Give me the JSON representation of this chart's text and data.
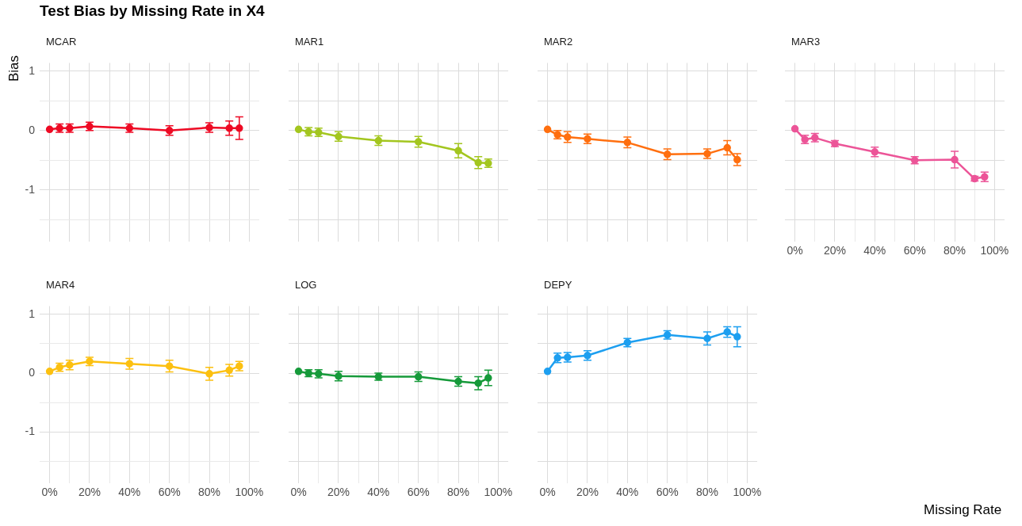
{
  "chart_data": [
    {
      "type": "line",
      "title": "Test Bias by Missing Rate in X4",
      "subtitle": "MCAR",
      "ylabel": "Bias",
      "x": [
        0,
        5,
        10,
        20,
        40,
        60,
        80,
        90,
        95
      ],
      "marker": "circle",
      "grid": true,
      "tick_labels": "y",
      "series": [
        {
          "color": "#ee0a24",
          "values": [
            0.02,
            0.04,
            0.04,
            0.07,
            0.04,
            0.0,
            0.05,
            0.04,
            0.04
          ],
          "errors": [
            null,
            0.07,
            0.07,
            0.07,
            0.07,
            0.08,
            0.08,
            0.12,
            0.19
          ]
        }
      ],
      "xlim": [
        -5,
        105
      ],
      "xticks": [
        0,
        10,
        20,
        30,
        40,
        50,
        60,
        70,
        80,
        90,
        100
      ],
      "ylim": [
        -1.87,
        1.14
      ],
      "yticks": [
        {
          "value": -1.5,
          "label": null
        },
        -1,
        {
          "value": -0.5,
          "label": null
        },
        0,
        {
          "value": 0.5,
          "label": null
        },
        1
      ]
    },
    {
      "type": "line",
      "subtitle": "MAR1",
      "x": [
        0,
        5,
        10,
        20,
        40,
        60,
        80,
        90,
        95
      ],
      "marker": "circle",
      "grid": true,
      "tick_labels": false,
      "series": [
        {
          "color": "#a3c61f",
          "values": [
            0.02,
            -0.02,
            -0.03,
            -0.1,
            -0.17,
            -0.19,
            -0.34,
            -0.54,
            -0.55
          ],
          "errors": [
            null,
            0.07,
            0.07,
            0.08,
            0.08,
            0.09,
            0.12,
            0.1,
            0.07
          ]
        }
      ],
      "xlim": [
        -5,
        105
      ],
      "xticks": [
        0,
        10,
        20,
        30,
        40,
        50,
        60,
        70,
        80,
        90,
        100
      ],
      "ylim": [
        -1.87,
        1.14
      ],
      "yticks": [
        -1.5,
        -1,
        -0.5,
        0,
        0.5,
        1
      ]
    },
    {
      "type": "line",
      "subtitle": "MAR2",
      "x": [
        0,
        5,
        10,
        20,
        40,
        60,
        80,
        90,
        95
      ],
      "marker": "circle",
      "grid": true,
      "tick_labels": false,
      "series": [
        {
          "color": "#ff6f0f",
          "values": [
            0.02,
            -0.07,
            -0.11,
            -0.14,
            -0.2,
            -0.4,
            -0.39,
            -0.29,
            -0.49
          ],
          "errors": [
            null,
            0.07,
            0.09,
            0.08,
            0.09,
            0.09,
            0.08,
            0.12,
            0.1
          ]
        }
      ],
      "xlim": [
        -5,
        105
      ],
      "xticks": [
        0,
        10,
        20,
        30,
        40,
        50,
        60,
        70,
        80,
        90,
        100
      ],
      "ylim": [
        -1.87,
        1.14
      ],
      "yticks": [
        -1.5,
        -1,
        -0.5,
        0,
        0.5,
        1
      ]
    },
    {
      "type": "line",
      "subtitle": "MAR3",
      "xlabel": "Missing Rate",
      "x": [
        0,
        5,
        10,
        20,
        40,
        60,
        80,
        90,
        95
      ],
      "marker": "circle",
      "grid": true,
      "tick_labels": "x",
      "series": [
        {
          "color": "#ec5598",
          "values": [
            0.03,
            -0.15,
            -0.12,
            -0.22,
            -0.36,
            -0.5,
            -0.49,
            -0.81,
            -0.78
          ],
          "errors": [
            null,
            0.07,
            0.07,
            0.05,
            0.08,
            0.06,
            0.14,
            0.04,
            0.08
          ]
        }
      ],
      "xlim": [
        -5,
        105
      ],
      "xticks": [
        {
          "value": 0,
          "label": "0%"
        },
        {
          "value": 10,
          "label": null
        },
        {
          "value": 20,
          "label": "20%"
        },
        {
          "value": 30,
          "label": null
        },
        {
          "value": 40,
          "label": "40%"
        },
        {
          "value": 50,
          "label": null
        },
        {
          "value": 60,
          "label": "60%"
        },
        {
          "value": 70,
          "label": null
        },
        {
          "value": 80,
          "label": "80%"
        },
        {
          "value": 90,
          "label": null
        },
        {
          "value": 100,
          "label": "100%"
        }
      ],
      "ylim": [
        -1.87,
        1.14
      ],
      "yticks": [
        -1.5,
        -1,
        -0.5,
        0,
        0.5,
        1
      ]
    },
    {
      "type": "line",
      "subtitle": "MAR4",
      "x": [
        0,
        5,
        10,
        20,
        40,
        60,
        80,
        90,
        95
      ],
      "marker": "circle",
      "grid": true,
      "series": [
        {
          "color": "#fcc010",
          "values": [
            0.03,
            0.1,
            0.14,
            0.2,
            0.16,
            0.12,
            -0.01,
            0.05,
            0.12
          ],
          "errors": [
            null,
            0.07,
            0.08,
            0.07,
            0.09,
            0.1,
            0.11,
            0.1,
            0.08
          ]
        }
      ],
      "xlim": [
        -5,
        105
      ],
      "xticks": [
        {
          "value": 0,
          "label": "0%"
        },
        {
          "value": 10,
          "label": null
        },
        {
          "value": 20,
          "label": "20%"
        },
        {
          "value": 30,
          "label": null
        },
        {
          "value": 40,
          "label": "40%"
        },
        {
          "value": 50,
          "label": null
        },
        {
          "value": 60,
          "label": "60%"
        },
        {
          "value": 70,
          "label": null
        },
        {
          "value": 80,
          "label": "80%"
        },
        {
          "value": 90,
          "label": null
        },
        {
          "value": 100,
          "label": "100%"
        }
      ],
      "ylim": [
        -1.87,
        1.14
      ],
      "yticks": [
        {
          "value": -1.5,
          "label": null
        },
        -1,
        {
          "value": -0.5,
          "label": null
        },
        0,
        {
          "value": 0.5,
          "label": null
        },
        1
      ]
    },
    {
      "type": "line",
      "subtitle": "LOG",
      "x": [
        0,
        5,
        10,
        20,
        40,
        60,
        80,
        90,
        95
      ],
      "marker": "circle",
      "grid": true,
      "tick_labels": "x",
      "series": [
        {
          "color": "#169a3a",
          "values": [
            0.03,
            0.0,
            -0.01,
            -0.05,
            -0.06,
            -0.06,
            -0.14,
            -0.17,
            -0.08
          ],
          "errors": [
            null,
            0.06,
            0.07,
            0.08,
            0.06,
            0.08,
            0.08,
            0.11,
            0.13
          ]
        }
      ],
      "xlim": [
        -5,
        105
      ],
      "xticks": [
        {
          "value": 0,
          "label": "0%"
        },
        {
          "value": 10,
          "label": null
        },
        {
          "value": 20,
          "label": "20%"
        },
        {
          "value": 30,
          "label": null
        },
        {
          "value": 40,
          "label": "40%"
        },
        {
          "value": 50,
          "label": null
        },
        {
          "value": 60,
          "label": "60%"
        },
        {
          "value": 70,
          "label": null
        },
        {
          "value": 80,
          "label": "80%"
        },
        {
          "value": 90,
          "label": null
        },
        {
          "value": 100,
          "label": "100%"
        }
      ],
      "ylim": [
        -1.87,
        1.14
      ],
      "yticks": [
        -1.5,
        -1,
        -0.5,
        0,
        0.5,
        1
      ]
    },
    {
      "type": "line",
      "subtitle": "DEPY",
      "x": [
        0,
        5,
        10,
        20,
        40,
        60,
        80,
        90,
        95
      ],
      "marker": "circle",
      "grid": true,
      "tick_labels": "x",
      "series": [
        {
          "color": "#1d9ff0",
          "values": [
            0.03,
            0.26,
            0.27,
            0.3,
            0.52,
            0.65,
            0.59,
            0.7,
            0.62
          ],
          "errors": [
            null,
            0.08,
            0.08,
            0.08,
            0.07,
            0.07,
            0.11,
            0.09,
            0.17
          ]
        }
      ],
      "xlim": [
        -5,
        105
      ],
      "xticks": [
        {
          "value": 0,
          "label": "0%"
        },
        {
          "value": 10,
          "label": null
        },
        {
          "value": 20,
          "label": "20%"
        },
        {
          "value": 30,
          "label": null
        },
        {
          "value": 40,
          "label": "40%"
        },
        {
          "value": 50,
          "label": null
        },
        {
          "value": 60,
          "label": "60%"
        },
        {
          "value": 70,
          "label": null
        },
        {
          "value": 80,
          "label": "80%"
        },
        {
          "value": 90,
          "label": null
        },
        {
          "value": 100,
          "label": "100%"
        }
      ],
      "ylim": [
        -1.87,
        1.14
      ],
      "yticks": [
        -1.5,
        -1,
        -0.5,
        0,
        0.5,
        1
      ]
    }
  ]
}
